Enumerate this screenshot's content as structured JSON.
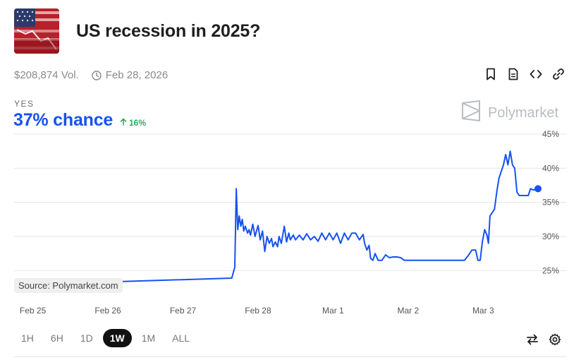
{
  "market": {
    "title": "US recession in 2025?",
    "volume": "$208,874 Vol.",
    "end_date": "Feb 28, 2026"
  },
  "outcome": {
    "label": "YES",
    "chance": "37% chance",
    "delta": "16%"
  },
  "brand": {
    "name": "Polymarket"
  },
  "source_label": "Source: Polymarket.com",
  "time_ranges": [
    "1H",
    "6H",
    "1D",
    "1W",
    "1M",
    "ALL"
  ],
  "active_range": "1W",
  "icons": {
    "actions": [
      "bookmark-icon",
      "document-icon",
      "embed-code-icon",
      "link-icon"
    ],
    "tools": [
      "swap-icon",
      "settings-gear-icon"
    ]
  },
  "colors": {
    "line": "#1652f0",
    "positive": "#27ae60",
    "active_range_bg": "#111111"
  },
  "chart_data": {
    "type": "line",
    "title": "",
    "xlabel": "",
    "ylabel": "",
    "x_ticks": [
      "Feb 25",
      "Feb 26",
      "Feb 27",
      "Feb 28",
      "Mar 1",
      "Mar 2",
      "Mar 3"
    ],
    "y_ticks": [
      "25%",
      "30%",
      "35%",
      "40%",
      "45%"
    ],
    "ylim": [
      21,
      45
    ],
    "xlim": [
      -0.25,
      6.73
    ],
    "grid": true,
    "series": [
      {
        "x": [
          -0.25,
          2.65,
          2.69,
          2.71,
          2.73,
          2.75,
          2.77,
          2.79,
          2.81,
          2.83,
          2.86,
          2.88,
          2.9,
          2.93,
          2.96,
          3.0,
          3.03,
          3.06,
          3.09,
          3.12,
          3.15,
          3.18,
          3.2,
          3.23,
          3.26,
          3.28,
          3.31,
          3.35,
          3.38,
          3.41,
          3.43,
          3.47,
          3.5,
          3.55,
          3.6,
          3.65,
          3.7,
          3.75,
          3.8,
          3.85,
          3.9,
          3.95,
          4.0,
          4.05,
          4.1,
          4.15,
          4.2,
          4.25,
          4.3,
          4.35,
          4.4,
          4.42,
          4.45,
          4.48,
          4.5,
          4.53,
          4.56,
          4.6,
          4.65,
          4.7,
          4.75,
          4.8,
          4.85,
          4.9,
          4.95,
          5.0,
          5.2,
          5.5,
          5.75,
          5.8,
          5.85,
          5.9,
          5.93,
          5.96,
          5.99,
          6.02,
          6.05,
          6.07,
          6.09,
          6.12,
          6.15,
          6.18,
          6.21,
          6.24,
          6.27,
          6.3,
          6.33,
          6.36,
          6.39,
          6.42,
          6.45,
          6.48,
          6.5,
          6.55,
          6.6,
          6.63,
          6.67,
          6.73
        ],
        "y": [
          22.9,
          23.9,
          25.5,
          37.0,
          31.0,
          33.0,
          31.5,
          32.5,
          30.8,
          31.5,
          30.5,
          31.0,
          30.2,
          31.8,
          30.0,
          31.6,
          29.5,
          30.8,
          27.8,
          30.0,
          29.0,
          29.7,
          28.5,
          29.2,
          28.5,
          30.0,
          29.0,
          31.5,
          29.2,
          30.5,
          29.5,
          30.2,
          29.5,
          30.2,
          29.5,
          30.4,
          29.5,
          30.0,
          29.3,
          30.5,
          29.5,
          30.5,
          29.5,
          30.5,
          29.0,
          30.5,
          29.5,
          30.5,
          30.5,
          29.5,
          30.3,
          29.0,
          28.0,
          28.7,
          26.8,
          26.5,
          27.5,
          26.5,
          26.5,
          27.3,
          26.9,
          27.0,
          27.0,
          26.9,
          26.5,
          26.5,
          26.5,
          26.5,
          26.5,
          27.2,
          28.0,
          28.0,
          26.5,
          26.5,
          29.3,
          31.0,
          30.2,
          29.0,
          33.0,
          33.5,
          34.0,
          36.5,
          38.5,
          39.5,
          40.5,
          42.0,
          40.5,
          42.5,
          40.5,
          40.0,
          36.5,
          36.0,
          36.0,
          36.0,
          36.0,
          37.0,
          36.8,
          37.0
        ]
      }
    ]
  }
}
